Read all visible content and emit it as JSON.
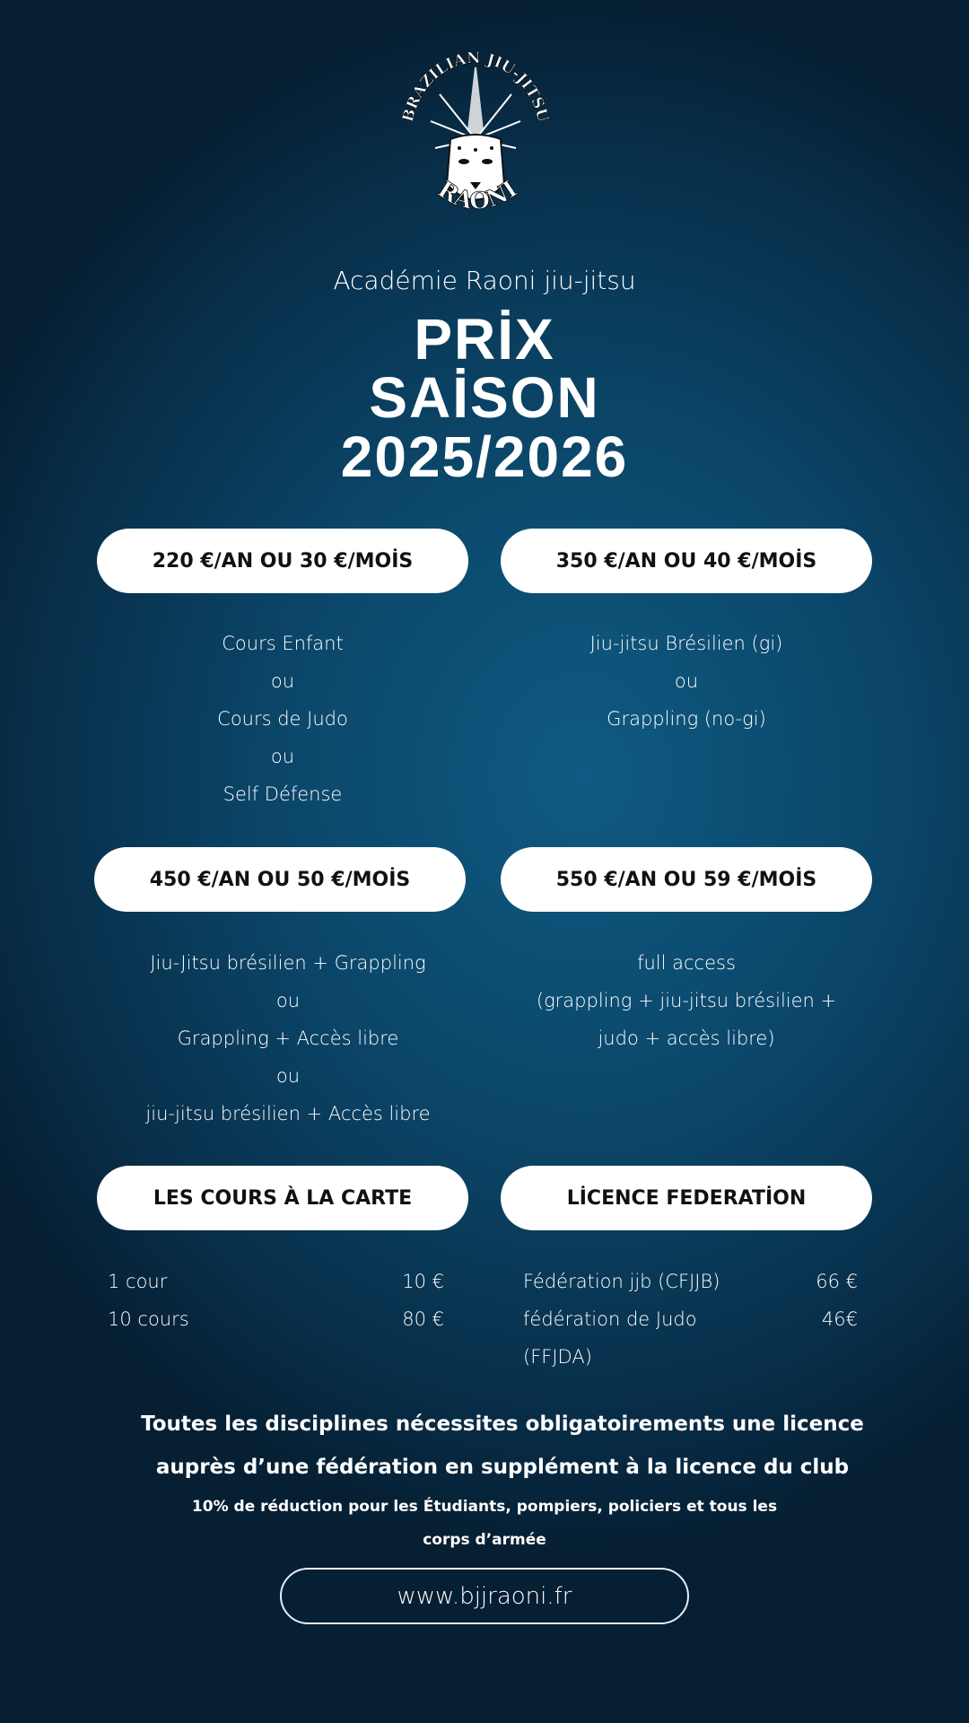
{
  "logo": {
    "text_top": "BRAZILIAN JIU-JITSU",
    "text_bottom": "RAONI"
  },
  "header": {
    "subtitle": "Académie Raoni jiu-jitsu",
    "title_line1": "PRİX",
    "title_line2": "SAİSON",
    "title_line3": "2025/2026"
  },
  "plans": [
    {
      "price": "220 €/AN OU 30 €/MOİS",
      "lines": [
        "Cours Enfant",
        "ou",
        "Cours de Judo",
        "ou",
        "Self Défense"
      ]
    },
    {
      "price": "350 €/AN OU 40 €/MOİS",
      "lines": [
        "Jiu-jitsu Brésilien (gi)",
        "ou",
        "Grappling (no-gi)"
      ]
    },
    {
      "price": "450 €/AN OU 50 €/MOİS",
      "lines": [
        "Jiu-Jitsu brésilien + Grappling",
        "ou",
        "Grappling + Accès libre",
        "ou",
        "jiu-jitsu brésilien + Accès libre"
      ]
    },
    {
      "price": "550 €/AN OU 59 €/MOİS",
      "lines": [
        "full access",
        "(grappling + jiu-jitsu brésilien +",
        "judo + accès libre)"
      ]
    }
  ],
  "carte": {
    "title": "LES COURS À LA CARTE",
    "rows": [
      {
        "label": "1 cour",
        "price": "10 €"
      },
      {
        "label": "10 cours",
        "price": "80 €"
      }
    ]
  },
  "licence": {
    "title": "LİCENCE FEDERATİON",
    "rows": [
      {
        "label": "Fédération jjb (CFJJB)",
        "price": "66 €"
      },
      {
        "label": "fédération de Judo",
        "price": "46€"
      },
      {
        "label": "(FFJDA)",
        "price": ""
      }
    ]
  },
  "notes": {
    "line1": "Toutes les disciplines  nécessites obligatoirements une licence",
    "line2": "auprès d’une fédération en supplément à la licence du club",
    "discount1": "10% de réduction pour les Étudiants, pompiers, policiers et tous les",
    "discount2": "corps d’armée"
  },
  "footer": {
    "url": "www.bjjraoni.fr"
  }
}
